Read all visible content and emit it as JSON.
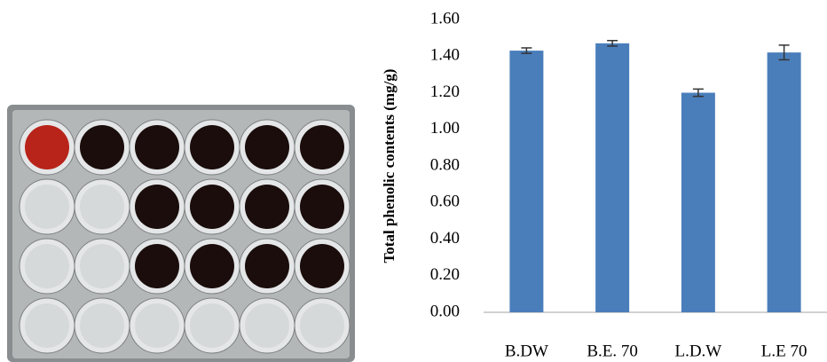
{
  "chart_data": {
    "type": "bar",
    "ylabel": "Total phenolic contents (mg/g)",
    "categories": [
      "B.DW",
      "B.E. 70",
      "L.D.W",
      "L.E 70"
    ],
    "values": [
      1.43,
      1.47,
      1.2,
      1.42
    ],
    "errors": [
      0.015,
      0.015,
      0.02,
      0.04
    ],
    "color": "#4a7ebb",
    "ylim": [
      0,
      1.6
    ],
    "yticks": [
      {
        "value": 0,
        "label": "0.00"
      },
      {
        "value": 0.2,
        "label": "0.20"
      },
      {
        "value": 0.4,
        "label": "0.40"
      },
      {
        "value": 0.6,
        "label": "0.60"
      },
      {
        "value": 0.8,
        "label": "0.80"
      },
      {
        "value": 1.0,
        "label": "1.00"
      },
      {
        "value": 1.2,
        "label": "1.20"
      },
      {
        "value": 1.4,
        "label": "1.40"
      },
      {
        "value": 1.6,
        "label": "1.60"
      }
    ],
    "grid": false
  }
}
